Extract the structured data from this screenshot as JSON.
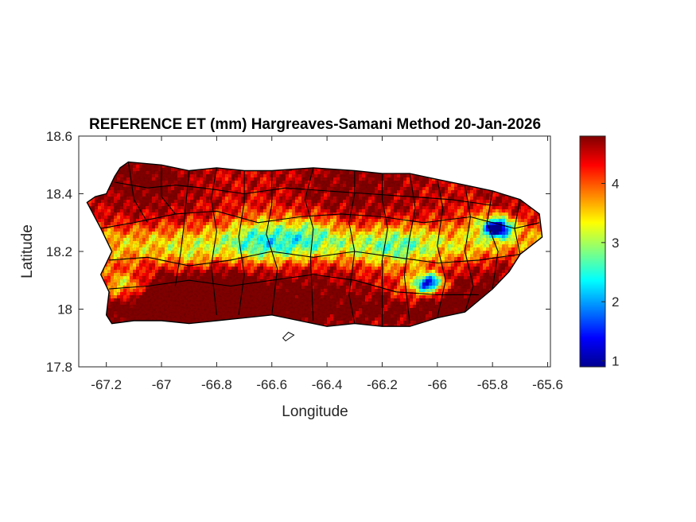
{
  "title": "REFERENCE ET (mm) Hargreaves-Samani Method  20-Jan-2026",
  "xlabel": "Longitude",
  "ylabel": "Latitude",
  "x_ticks": [
    "-67.2",
    "-67",
    "-66.8",
    "-66.6",
    "-66.4",
    "-66.2",
    "-66",
    "-65.8",
    "-65.6"
  ],
  "y_ticks": [
    "18.6",
    "18.4",
    "18.2",
    "18",
    "17.8"
  ],
  "colorbar": {
    "ticks": [
      "4",
      "3",
      "2",
      "1"
    ],
    "range": [
      0.9,
      4.8
    ],
    "colormap": "jet",
    "colors": [
      "#00008f",
      "#0000ff",
      "#0080ff",
      "#00ffff",
      "#80ff80",
      "#ffff00",
      "#ff8000",
      "#ff0000",
      "#800000"
    ]
  },
  "chart_data": {
    "type": "heatmap",
    "title": "REFERENCE ET (mm) Hargreaves-Samani Method  20-Jan-2026",
    "xlabel": "Longitude",
    "ylabel": "Latitude",
    "xlim": [
      -67.3,
      -65.59
    ],
    "ylim": [
      17.8,
      18.6
    ],
    "clim": [
      0.9,
      4.8
    ],
    "grid": false,
    "colorbar": "right",
    "island_outline": [
      [
        -67.27,
        18.37
      ],
      [
        -67.24,
        18.39
      ],
      [
        -67.2,
        18.4
      ],
      [
        -67.17,
        18.46
      ],
      [
        -67.15,
        18.49
      ],
      [
        -67.12,
        18.51
      ],
      [
        -67.0,
        18.5
      ],
      [
        -66.9,
        18.48
      ],
      [
        -66.8,
        18.49
      ],
      [
        -66.7,
        18.48
      ],
      [
        -66.6,
        18.48
      ],
      [
        -66.45,
        18.49
      ],
      [
        -66.3,
        18.48
      ],
      [
        -66.2,
        18.47
      ],
      [
        -66.1,
        18.47
      ],
      [
        -66.0,
        18.45
      ],
      [
        -65.9,
        18.43
      ],
      [
        -65.8,
        18.41
      ],
      [
        -65.7,
        18.38
      ],
      [
        -65.63,
        18.33
      ],
      [
        -65.62,
        18.25
      ],
      [
        -65.66,
        18.22
      ],
      [
        -65.7,
        18.19
      ],
      [
        -65.74,
        18.13
      ],
      [
        -65.8,
        18.07
      ],
      [
        -65.9,
        17.99
      ],
      [
        -66.0,
        17.97
      ],
      [
        -66.1,
        17.94
      ],
      [
        -66.2,
        17.94
      ],
      [
        -66.3,
        17.95
      ],
      [
        -66.4,
        17.94
      ],
      [
        -66.5,
        17.96
      ],
      [
        -66.6,
        17.98
      ],
      [
        -66.7,
        17.97
      ],
      [
        -66.8,
        17.96
      ],
      [
        -66.9,
        17.95
      ],
      [
        -67.0,
        17.96
      ],
      [
        -67.1,
        17.96
      ],
      [
        -67.18,
        17.95
      ],
      [
        -67.2,
        17.98
      ],
      [
        -67.19,
        18.06
      ],
      [
        -67.22,
        18.12
      ],
      [
        -67.18,
        18.2
      ],
      [
        -67.22,
        18.28
      ],
      [
        -67.27,
        18.37
      ]
    ],
    "small_island": [
      [
        -66.56,
        17.9
      ],
      [
        -66.54,
        17.92
      ],
      [
        -66.52,
        17.91
      ],
      [
        -66.55,
        17.89
      ]
    ],
    "hotspots": [
      {
        "lon": -66.85,
        "lat": 18.01,
        "r": 0.22,
        "v": 1.6
      },
      {
        "lon": -67.05,
        "lat": 18.45,
        "r": 0.2,
        "v": 0.6
      },
      {
        "lon": -66.3,
        "lat": 18.44,
        "r": 0.25,
        "v": 0.5
      },
      {
        "lon": -65.95,
        "lat": 18.05,
        "r": 0.18,
        "v": 0.5
      },
      {
        "lon": -65.75,
        "lat": 18.37,
        "r": 0.1,
        "v": 0.4
      },
      {
        "lon": -65.72,
        "lat": 18.15,
        "r": 0.12,
        "v": 0.5
      },
      {
        "lon": -66.45,
        "lat": 18.1,
        "r": 0.2,
        "v": 0.4
      },
      {
        "lon": -66.45,
        "lat": 18.27,
        "r": 0.1,
        "v": -0.7
      },
      {
        "lon": -66.62,
        "lat": 18.25,
        "r": 0.14,
        "v": -0.9
      },
      {
        "lon": -66.15,
        "lat": 18.22,
        "r": 0.12,
        "v": -0.6
      },
      {
        "lon": -66.03,
        "lat": 18.09,
        "r": 0.05,
        "v": -2.8
      },
      {
        "lon": -66.07,
        "lat": 18.07,
        "r": 0.1,
        "v": -0.9
      },
      {
        "lon": -65.78,
        "lat": 18.28,
        "r": 0.045,
        "v": -3.0
      },
      {
        "lon": -65.8,
        "lat": 18.3,
        "r": 0.09,
        "v": -1.0
      },
      {
        "lon": -67.14,
        "lat": 18.08,
        "r": 0.08,
        "v": -1.2
      },
      {
        "lon": -66.9,
        "lat": 18.16,
        "r": 0.1,
        "v": -0.5
      }
    ],
    "municipality_lines": [
      [
        [
          -67.12,
          18.51
        ],
        [
          -67.1,
          18.38
        ],
        [
          -67.05,
          18.3
        ]
      ],
      [
        [
          -67.0,
          18.5
        ],
        [
          -67.0,
          18.39
        ],
        [
          -66.95,
          18.33
        ]
      ],
      [
        [
          -66.9,
          18.48
        ],
        [
          -66.91,
          18.38
        ],
        [
          -66.92,
          18.28
        ],
        [
          -66.93,
          18.2
        ],
        [
          -66.95,
          18.08
        ]
      ],
      [
        [
          -66.8,
          18.49
        ],
        [
          -66.82,
          18.38
        ],
        [
          -66.8,
          18.27
        ],
        [
          -66.82,
          18.15
        ],
        [
          -66.8,
          17.98
        ]
      ],
      [
        [
          -66.7,
          18.48
        ],
        [
          -66.7,
          18.37
        ],
        [
          -66.72,
          18.25
        ],
        [
          -66.7,
          18.12
        ],
        [
          -66.72,
          17.98
        ]
      ],
      [
        [
          -66.6,
          18.48
        ],
        [
          -66.6,
          18.36
        ],
        [
          -66.62,
          18.26
        ],
        [
          -66.58,
          18.14
        ],
        [
          -66.6,
          17.98
        ]
      ],
      [
        [
          -66.45,
          18.49
        ],
        [
          -66.48,
          18.38
        ],
        [
          -66.45,
          18.28
        ],
        [
          -66.46,
          18.18
        ],
        [
          -66.45,
          17.96
        ]
      ],
      [
        [
          -66.3,
          18.48
        ],
        [
          -66.3,
          18.4
        ],
        [
          -66.32,
          18.3
        ],
        [
          -66.3,
          18.2
        ],
        [
          -66.32,
          18.05
        ],
        [
          -66.3,
          17.95
        ]
      ],
      [
        [
          -66.2,
          18.47
        ],
        [
          -66.2,
          18.38
        ],
        [
          -66.18,
          18.28
        ],
        [
          -66.2,
          18.17
        ],
        [
          -66.2,
          17.94
        ]
      ],
      [
        [
          -66.1,
          18.47
        ],
        [
          -66.08,
          18.35
        ],
        [
          -66.1,
          18.25
        ],
        [
          -66.12,
          18.12
        ],
        [
          -66.1,
          17.95
        ]
      ],
      [
        [
          -66.0,
          18.45
        ],
        [
          -65.98,
          18.35
        ],
        [
          -66.0,
          18.22
        ],
        [
          -65.97,
          18.1
        ],
        [
          -66.0,
          17.97
        ]
      ],
      [
        [
          -65.9,
          18.43
        ],
        [
          -65.88,
          18.32
        ],
        [
          -65.9,
          18.2
        ],
        [
          -65.87,
          18.08
        ],
        [
          -65.9,
          17.99
        ]
      ],
      [
        [
          -65.8,
          18.41
        ],
        [
          -65.82,
          18.3
        ],
        [
          -65.78,
          18.2
        ],
        [
          -65.8,
          18.07
        ]
      ],
      [
        [
          -65.7,
          18.38
        ],
        [
          -65.72,
          18.28
        ],
        [
          -65.7,
          18.19
        ]
      ],
      [
        [
          -67.22,
          18.28
        ],
        [
          -67.1,
          18.3
        ],
        [
          -66.95,
          18.33
        ],
        [
          -66.8,
          18.34
        ],
        [
          -66.65,
          18.3
        ],
        [
          -66.5,
          18.32
        ],
        [
          -66.35,
          18.33
        ],
        [
          -66.2,
          18.32
        ],
        [
          -66.05,
          18.3
        ],
        [
          -65.88,
          18.32
        ],
        [
          -65.72,
          18.28
        ],
        [
          -65.63,
          18.3
        ]
      ],
      [
        [
          -67.19,
          18.17
        ],
        [
          -67.05,
          18.18
        ],
        [
          -66.9,
          18.15
        ],
        [
          -66.75,
          18.17
        ],
        [
          -66.6,
          18.2
        ],
        [
          -66.45,
          18.18
        ],
        [
          -66.3,
          18.2
        ],
        [
          -66.15,
          18.18
        ],
        [
          -66.0,
          18.16
        ],
        [
          -65.85,
          18.17
        ],
        [
          -65.7,
          18.19
        ]
      ],
      [
        [
          -67.19,
          18.07
        ],
        [
          -67.05,
          18.08
        ],
        [
          -66.9,
          18.1
        ],
        [
          -66.75,
          18.08
        ],
        [
          -66.6,
          18.1
        ],
        [
          -66.45,
          18.12
        ],
        [
          -66.3,
          18.1
        ],
        [
          -66.15,
          18.06
        ],
        [
          -66.0,
          18.05
        ],
        [
          -65.85,
          18.05
        ]
      ],
      [
        [
          -67.17,
          18.44
        ],
        [
          -67.05,
          18.42
        ],
        [
          -66.95,
          18.43
        ],
        [
          -66.85,
          18.42
        ],
        [
          -66.7,
          18.4
        ],
        [
          -66.55,
          18.42
        ],
        [
          -66.4,
          18.41
        ],
        [
          -66.25,
          18.4
        ],
        [
          -66.1,
          18.39
        ],
        [
          -65.95,
          18.38
        ],
        [
          -65.8,
          18.36
        ]
      ]
    ]
  }
}
